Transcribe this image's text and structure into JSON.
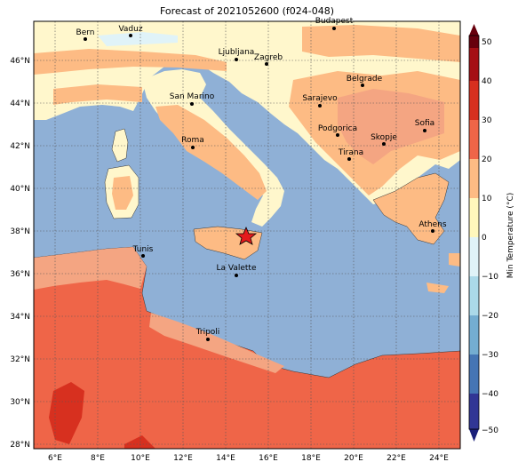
{
  "title": "Forecast of 2021052600 (f024-048)",
  "colorbar": {
    "label": "Min Temperature (°C)",
    "ticks": [
      "50",
      "40",
      "30",
      "20",
      "10",
      "0",
      "−10",
      "−20",
      "−30",
      "−40",
      "−50"
    ],
    "colors": [
      "#67000d",
      "#a50f15",
      "#d7301f",
      "#ef6548",
      "#fc8d59",
      "#fdbb84",
      "#fff7bc",
      "#e0f3f8",
      "#abd9e9",
      "#74add1",
      "#4575b4",
      "#313695",
      "#1a1f7a"
    ]
  },
  "axes": {
    "x_ticks": [
      "6°E",
      "8°E",
      "10°E",
      "12°E",
      "14°E",
      "16°E",
      "18°E",
      "20°E",
      "22°E",
      "24°E"
    ],
    "y_ticks": [
      "46°N",
      "44°N",
      "42°N",
      "40°N",
      "38°N",
      "36°N",
      "34°N",
      "32°N",
      "30°N",
      "28°N"
    ],
    "grid": true
  },
  "map_colors": {
    "sea": "#8fb0d6",
    "cold": "#fff7cc",
    "cool": "#fdbb84",
    "mild": "#f4a582",
    "warm": "#ef6548",
    "hot": "#d7301f",
    "snow": "#e0f3f8"
  },
  "cities": [
    {
      "name": "Bern"
    },
    {
      "name": "Vaduz"
    },
    {
      "name": "Budapest"
    },
    {
      "name": "Ljubljana"
    },
    {
      "name": "Zagreb"
    },
    {
      "name": "Belgrade"
    },
    {
      "name": "San Marino"
    },
    {
      "name": "Sarajevo"
    },
    {
      "name": "Sofia"
    },
    {
      "name": "Roma"
    },
    {
      "name": "Podgorica"
    },
    {
      "name": "Skopje"
    },
    {
      "name": "Tirana"
    },
    {
      "name": "Athens"
    },
    {
      "name": "Tunis"
    },
    {
      "name": "La Valette"
    },
    {
      "name": "Tripoli"
    }
  ],
  "marker": {
    "icon": "star-icon",
    "color": "#e41a1c"
  }
}
